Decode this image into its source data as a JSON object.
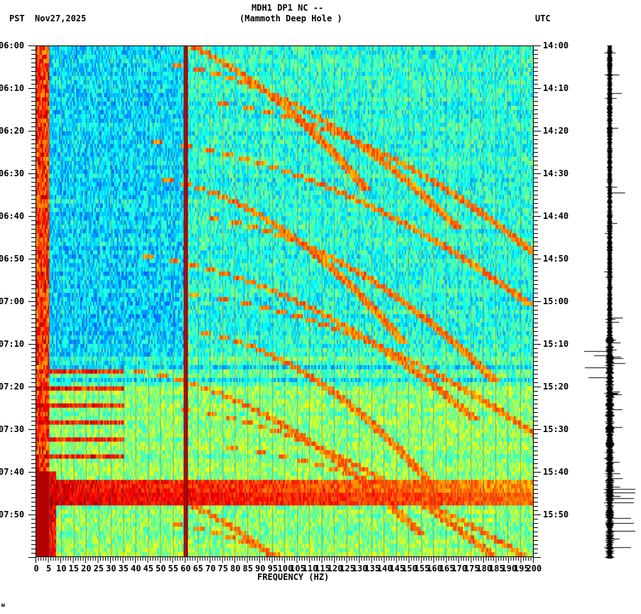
{
  "header": {
    "station": "MDH1 DP1 NC --",
    "site": "(Mammoth Deep Hole )",
    "left_tz": "PST",
    "date": "Nov27,2025",
    "right_tz": "UTC"
  },
  "footer": {
    "corner_mark": "ᴍ"
  },
  "chart_data": {
    "type": "heatmap",
    "title": "MDH1 DP1 NC -- (Mammoth Deep Hole )",
    "xlabel": "FREQUENCY (HZ)",
    "ylabel_left": "PST",
    "ylabel_right": "UTC",
    "xlim": [
      0,
      200
    ],
    "x_ticks": [
      "0",
      "5",
      "10",
      "15",
      "20",
      "25",
      "30",
      "35",
      "40",
      "45",
      "50",
      "55",
      "60",
      "65",
      "70",
      "75",
      "80",
      "85",
      "90",
      "95",
      "100",
      "105",
      "110",
      "115",
      "120",
      "125",
      "130",
      "135",
      "140",
      "145",
      "150",
      "155",
      "160",
      "165",
      "170",
      "175",
      "180",
      "185",
      "190",
      "195",
      "200"
    ],
    "y_ticks_left": [
      "06:00",
      "06:10",
      "06:20",
      "06:30",
      "06:40",
      "06:50",
      "07:00",
      "07:10",
      "07:20",
      "07:30",
      "07:40",
      "07:50"
    ],
    "y_ticks_right": [
      "14:00",
      "14:10",
      "14:20",
      "14:30",
      "14:40",
      "14:50",
      "15:00",
      "15:10",
      "15:20",
      "15:30",
      "15:40",
      "15:50"
    ],
    "time_range_pst": [
      "06:00",
      "08:00"
    ],
    "date": "Nov27,2025",
    "colormap": "jet",
    "notable_features": [
      {
        "type": "persistent_line",
        "frequency_hz": 60,
        "description": "strong 60 Hz line throughout"
      },
      {
        "type": "low_freq_energy",
        "frequency_hz": [
          0,
          5
        ],
        "description": "high energy at 0-5 Hz all period"
      },
      {
        "type": "broadband_burst",
        "time_pst": "07:43-07:46",
        "description": "strong broadband energy across 0-200 Hz"
      },
      {
        "type": "gliding_tones",
        "time_pst": "06:00-07:20",
        "description": "curved upward-gliding harmonic tones"
      }
    ],
    "colors": {
      "low": "#00008f",
      "mid_low": "#0080ff",
      "mid": "#00ffff",
      "mid_high": "#ffff00",
      "high": "#ff0000",
      "max": "#800000"
    }
  }
}
